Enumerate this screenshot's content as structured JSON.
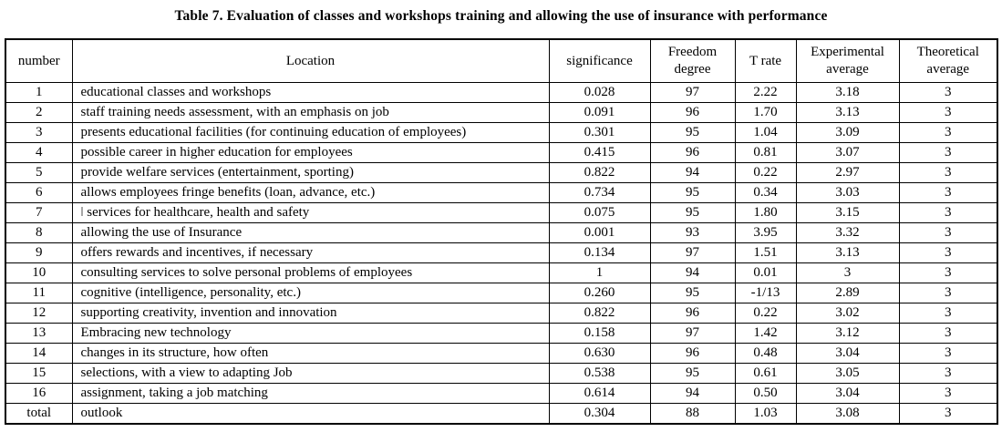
{
  "title": "Table 7. Evaluation of classes and workshops training and allowing the use of insurance with performance",
  "table": {
    "columns": [
      "number",
      "Location",
      "significance",
      "Freedom degree",
      "T rate",
      "Experimental average",
      "Theoretical average"
    ],
    "column_keys": [
      "number",
      "location",
      "significance",
      "freedom-degree",
      "t-rate",
      "experimental-average",
      "theoretical-average"
    ],
    "rows": [
      [
        "1",
        "educational classes and workshops",
        "0.028",
        "97",
        "2.22",
        "3.18",
        "3"
      ],
      [
        "2",
        "staff training needs assessment, with an emphasis on job",
        "0.091",
        "96",
        "1.70",
        "3.13",
        "3"
      ],
      [
        "3",
        "presents educational facilities (for continuing education of employees)",
        "0.301",
        "95",
        "1.04",
        "3.09",
        "3"
      ],
      [
        "4",
        "possible career in higher education for employees",
        "0.415",
        "96",
        "0.81",
        "3.07",
        "3"
      ],
      [
        "5",
        "provide welfare services (entertainment, sporting)",
        "0.822",
        "94",
        "0.22",
        "2.97",
        "3"
      ],
      [
        "6",
        "allows employees fringe benefits (loan, advance, etc.)",
        "0.734",
        "95",
        "0.34",
        "3.03",
        "3"
      ],
      [
        "7",
        "ǀ services for healthcare, health and safety",
        "0.075",
        "95",
        "1.80",
        "3.15",
        "3"
      ],
      [
        "8",
        "allowing the use of Insurance",
        "0.001",
        "93",
        "3.95",
        "3.32",
        "3"
      ],
      [
        "9",
        "offers rewards and incentives, if necessary",
        "0.134",
        "97",
        "1.51",
        "3.13",
        "3"
      ],
      [
        "10",
        "consulting services to solve personal problems of employees",
        "1",
        "94",
        "0.01",
        "3",
        "3"
      ],
      [
        "11",
        "cognitive (intelligence, personality, etc.)",
        "0.260",
        "95",
        "-1/13",
        "2.89",
        "3"
      ],
      [
        "12",
        "supporting creativity, invention and innovation",
        "0.822",
        "96",
        "0.22",
        "3.02",
        "3"
      ],
      [
        "13",
        "Embracing new technology",
        "0.158",
        "97",
        "1.42",
        "3.12",
        "3"
      ],
      [
        "14",
        "changes in its structure, how often",
        "0.630",
        "96",
        "0.48",
        "3.04",
        "3"
      ],
      [
        "15",
        "selections, with a view to adapting Job",
        "0.538",
        "95",
        "0.61",
        "3.05",
        "3"
      ],
      [
        "16",
        "assignment, taking a job matching",
        "0.614",
        "94",
        "0.50",
        "3.04",
        "3"
      ],
      [
        "total",
        "outlook",
        "0.304",
        "88",
        "1.03",
        "3.08",
        "3"
      ]
    ]
  },
  "colors": {
    "text": "#000000",
    "background": "#ffffff",
    "border": "#000000"
  }
}
